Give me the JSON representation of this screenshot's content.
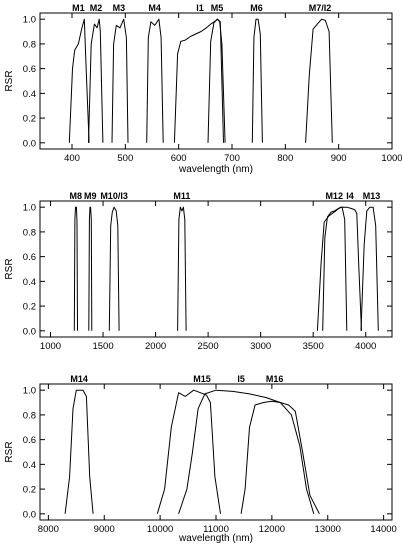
{
  "chart_data": [
    {
      "type": "line",
      "title": "",
      "xlabel": "wavelength (nm)",
      "ylabel": "RSR",
      "xlim": [
        340,
        1000
      ],
      "ylim": [
        -0.05,
        1.05
      ],
      "xticks": [
        400,
        500,
        600,
        700,
        800,
        900,
        1000
      ],
      "yticks": [
        0.0,
        0.2,
        0.4,
        0.6,
        0.8,
        1.0
      ],
      "ytick_labels": [
        "0.0",
        "0.2",
        "0.4",
        "0.6",
        "0.8",
        "1.0"
      ],
      "labels": [
        {
          "text": "M1",
          "x": 412
        },
        {
          "text": "M2",
          "x": 445
        },
        {
          "text": "M3",
          "x": 488
        },
        {
          "text": "M4",
          "x": 555
        },
        {
          "text": "I1",
          "x": 640
        },
        {
          "text": "M5",
          "x": 672
        },
        {
          "text": "M6",
          "x": 746
        },
        {
          "text": "M7/I2",
          "x": 865
        }
      ],
      "series": [
        {
          "x": [
            395,
            401,
            405,
            412,
            418,
            423,
            427,
            432
          ],
          "y": [
            0.0,
            0.6,
            0.75,
            0.8,
            0.92,
            1.0,
            0.55,
            0.0
          ]
        },
        {
          "x": [
            431,
            436,
            442,
            447,
            451,
            453,
            458
          ],
          "y": [
            0.0,
            0.8,
            0.96,
            0.93,
            1.0,
            0.9,
            0.0
          ]
        },
        {
          "x": [
            475,
            478,
            483,
            490,
            497,
            502,
            505
          ],
          "y": [
            0.0,
            0.8,
            0.95,
            0.93,
            1.0,
            0.85,
            0.0
          ]
        },
        {
          "x": [
            540,
            543,
            548,
            555,
            563,
            567,
            571
          ],
          "y": [
            0.0,
            0.85,
            0.98,
            0.95,
            1.0,
            0.85,
            0.0
          ]
        },
        {
          "x": [
            592,
            598,
            604,
            612,
            622,
            632,
            642,
            652,
            660,
            667,
            673,
            678,
            684
          ],
          "y": [
            0.0,
            0.72,
            0.82,
            0.83,
            0.86,
            0.88,
            0.9,
            0.93,
            0.96,
            0.98,
            1.0,
            0.98,
            0.0
          ]
        },
        {
          "x": [
            655,
            660,
            666,
            672,
            677,
            681,
            687
          ],
          "y": [
            0.0,
            0.82,
            0.97,
            1.0,
            0.98,
            0.8,
            0.0
          ]
        },
        {
          "x": [
            738,
            741,
            745,
            749,
            753,
            757
          ],
          "y": [
            0.0,
            0.85,
            1.0,
            1.0,
            0.88,
            0.0
          ]
        },
        {
          "x": [
            838,
            845,
            852,
            860,
            868,
            875,
            882,
            888
          ],
          "y": [
            0.0,
            0.55,
            0.92,
            0.96,
            1.0,
            0.99,
            0.9,
            0.0
          ]
        }
      ]
    },
    {
      "type": "line",
      "title": "",
      "xlabel": "",
      "ylabel": "RSR",
      "xlim": [
        900,
        4250
      ],
      "ylim": [
        -0.05,
        1.05
      ],
      "xticks": [
        1000,
        1500,
        2000,
        2500,
        3000,
        3500,
        4000
      ],
      "yticks": [
        0.0,
        0.2,
        0.4,
        0.6,
        0.8,
        1.0
      ],
      "ytick_labels": [
        "0.0",
        "0.2",
        "0.4",
        "0.6",
        "0.8",
        "1.0"
      ],
      "labels": [
        {
          "text": "M8",
          "x": 1240
        },
        {
          "text": "M9",
          "x": 1378
        },
        {
          "text": "M10/I3",
          "x": 1605
        },
        {
          "text": "M11",
          "x": 2250
        },
        {
          "text": "M12",
          "x": 3700
        },
        {
          "text": "I4",
          "x": 3850
        },
        {
          "text": "M13",
          "x": 4055
        }
      ],
      "series": [
        {
          "x": [
            1226,
            1232,
            1238,
            1246,
            1252,
            1257
          ],
          "y": [
            0.0,
            0.9,
            1.0,
            1.0,
            0.88,
            0.0
          ]
        },
        {
          "x": [
            1364,
            1370,
            1376,
            1382,
            1388,
            1393
          ],
          "y": [
            0.0,
            0.9,
            1.0,
            1.0,
            0.9,
            0.0
          ]
        },
        {
          "x": [
            1560,
            1573,
            1588,
            1605,
            1625,
            1640,
            1653
          ],
          "y": [
            0.0,
            0.85,
            0.96,
            1.0,
            0.97,
            0.85,
            0.0
          ]
        },
        {
          "x": [
            2210,
            2222,
            2235,
            2250,
            2265,
            2278,
            2290
          ],
          "y": [
            0.0,
            0.9,
            1.0,
            0.97,
            1.0,
            0.9,
            0.0
          ]
        },
        {
          "x": [
            3590,
            3610,
            3635,
            3670,
            3705,
            3740,
            3775,
            3800,
            3820
          ],
          "y": [
            0.0,
            0.75,
            0.92,
            0.96,
            0.97,
            0.99,
            1.0,
            0.9,
            0.0
          ]
        },
        {
          "x": [
            3540,
            3575,
            3605,
            3650,
            3700,
            3760,
            3820,
            3860,
            3895,
            3915,
            3935,
            3960
          ],
          "y": [
            0.0,
            0.55,
            0.88,
            0.93,
            0.96,
            1.0,
            1.0,
            0.99,
            0.98,
            0.95,
            0.5,
            0.0
          ]
        },
        {
          "x": [
            3955,
            3985,
            4010,
            4040,
            4070,
            4095,
            4120
          ],
          "y": [
            0.0,
            0.7,
            0.97,
            1.0,
            1.0,
            0.85,
            0.0
          ]
        }
      ]
    },
    {
      "type": "line",
      "title": "",
      "xlabel": "wavelength (nm)",
      "ylabel": "RSR",
      "xlim": [
        7850,
        14150
      ],
      "ylim": [
        -0.05,
        1.05
      ],
      "xticks": [
        8000,
        9000,
        10000,
        11000,
        12000,
        13000,
        14000
      ],
      "yticks": [
        0.0,
        0.2,
        0.4,
        0.6,
        0.8,
        1.0
      ],
      "ytick_labels": [
        "0.0",
        "0.2",
        "0.4",
        "0.6",
        "0.8",
        "1.0"
      ],
      "labels": [
        {
          "text": "M14",
          "x": 8550
        },
        {
          "text": "M15",
          "x": 10750
        },
        {
          "text": "I5",
          "x": 11450
        },
        {
          "text": "M16",
          "x": 12050
        }
      ],
      "series": [
        {
          "x": [
            8300,
            8380,
            8440,
            8500,
            8560,
            8620,
            8680,
            8740,
            8800
          ],
          "y": [
            0.0,
            0.3,
            0.85,
            1.0,
            1.0,
            1.0,
            0.95,
            0.3,
            0.0
          ]
        },
        {
          "x": [
            9950,
            10080,
            10200,
            10330,
            10450,
            10600,
            10720,
            10830,
            10900,
            10980,
            11080
          ],
          "y": [
            0.0,
            0.2,
            0.7,
            0.98,
            0.95,
            1.0,
            0.98,
            0.96,
            0.9,
            0.3,
            0.0
          ]
        },
        {
          "x": [
            10330,
            10480,
            10580,
            10680,
            10800,
            11000,
            11300,
            11600,
            11900,
            12150,
            12350,
            12500,
            12620,
            12750
          ],
          "y": [
            0.0,
            0.2,
            0.5,
            0.85,
            0.97,
            1.0,
            0.99,
            0.97,
            0.94,
            0.9,
            0.8,
            0.55,
            0.2,
            0.0
          ]
        },
        {
          "x": [
            11450,
            11520,
            11600,
            11700,
            11850,
            12000,
            12150,
            12300,
            12420,
            12550,
            12680,
            12850
          ],
          "y": [
            0.0,
            0.2,
            0.7,
            0.88,
            0.9,
            0.91,
            0.9,
            0.88,
            0.83,
            0.5,
            0.15,
            0.0
          ]
        }
      ]
    }
  ]
}
